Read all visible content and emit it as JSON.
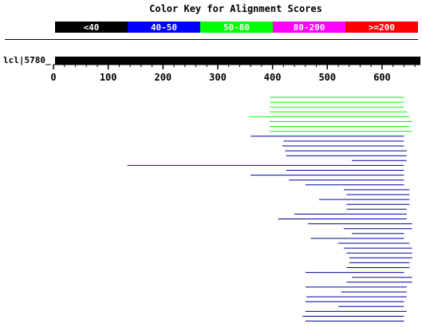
{
  "title": "Color Key for Alignment Scores",
  "color_key": [
    {
      "label": "<40",
      "color": "#000000"
    },
    {
      "label": "40-50",
      "color": "#0000ff"
    },
    {
      "label": "50-80",
      "color": "#00ff00"
    },
    {
      "label": "80-200",
      "color": "#ff00ff"
    },
    {
      "label": ">=200",
      "color": "#ff0000"
    }
  ],
  "query": {
    "label": "lcl|5780_",
    "length": 670
  },
  "axis": {
    "ticks": [
      "0",
      "100",
      "200",
      "300",
      "400",
      "500",
      "600"
    ],
    "min": 0,
    "max": 670
  },
  "hits": [
    {
      "color": "#00ff00",
      "start": 395,
      "end": 640
    },
    {
      "color": "#00ff00",
      "start": 395,
      "end": 640
    },
    {
      "color": "#00ff00",
      "start": 395,
      "end": 640
    },
    {
      "color": "#00ff00",
      "start": 395,
      "end": 645
    },
    {
      "color": "#00ff00",
      "start": 357,
      "end": 650
    },
    {
      "color": "#00ff00",
      "start": 395,
      "end": 655
    },
    {
      "color": "#00ff00",
      "start": 395,
      "end": 650
    },
    {
      "color": "#00ff00",
      "start": 395,
      "end": 655
    },
    {
      "color": "#0000a0",
      "start": 360,
      "end": 640
    },
    {
      "color": "#0000a0",
      "start": 420,
      "end": 640
    },
    {
      "color": "#0000a0",
      "start": 418,
      "end": 640
    },
    {
      "color": "#0000a0",
      "start": 423,
      "end": 645
    },
    {
      "color": "#0000a0",
      "start": 425,
      "end": 645
    },
    {
      "color": "#0000a0",
      "start": 545,
      "end": 645
    },
    {
      "color": "#0000a0",
      "start": 135,
      "end": 640
    },
    {
      "color": "#0000a0",
      "start": 425,
      "end": 640
    },
    {
      "color": "#0000a0",
      "start": 360,
      "end": 640
    },
    {
      "color": "#0000a0",
      "start": 430,
      "end": 640
    },
    {
      "color": "#0000a0",
      "start": 460,
      "end": 640
    },
    {
      "color": "#0000a0",
      "start": 530,
      "end": 650
    },
    {
      "color": "#0000a0",
      "start": 535,
      "end": 650
    },
    {
      "color": "#0000a0",
      "start": 485,
      "end": 650
    },
    {
      "color": "#0000a0",
      "start": 535,
      "end": 650
    },
    {
      "color": "#0000a0",
      "start": 535,
      "end": 645
    },
    {
      "color": "#0000a0",
      "start": 440,
      "end": 645
    },
    {
      "color": "#0000a0",
      "start": 410,
      "end": 645
    },
    {
      "color": "#0000a0",
      "start": 465,
      "end": 655
    },
    {
      "color": "#0000a0",
      "start": 530,
      "end": 655
    },
    {
      "color": "#0000a0",
      "start": 545,
      "end": 640
    },
    {
      "color": "#0000a0",
      "start": 470,
      "end": 640
    },
    {
      "color": "#0000a0",
      "start": 520,
      "end": 650
    },
    {
      "color": "#0000a0",
      "start": 530,
      "end": 655
    },
    {
      "color": "#0000a0",
      "start": 535,
      "end": 655
    },
    {
      "color": "#0000a0",
      "start": 540,
      "end": 655
    },
    {
      "color": "#0000a0",
      "start": 540,
      "end": 650
    },
    {
      "color": "#0000a0",
      "start": 535,
      "end": 650
    },
    {
      "color": "#0000a0",
      "start": 460,
      "end": 640
    },
    {
      "color": "#0000a0",
      "start": 545,
      "end": 655
    },
    {
      "color": "#0000a0",
      "start": 535,
      "end": 655
    },
    {
      "color": "#0000a0",
      "start": 460,
      "end": 645
    },
    {
      "color": "#0000a0",
      "start": 525,
      "end": 645
    },
    {
      "color": "#0000a0",
      "start": 462,
      "end": 645
    },
    {
      "color": "#0000a0",
      "start": 460,
      "end": 640
    },
    {
      "color": "#0000a0",
      "start": 520,
      "end": 640
    },
    {
      "color": "#0000a0",
      "start": 460,
      "end": 645
    },
    {
      "color": "#0000a0",
      "start": 455,
      "end": 640
    },
    {
      "color": "#0000a0",
      "start": 460,
      "end": 640
    }
  ]
}
